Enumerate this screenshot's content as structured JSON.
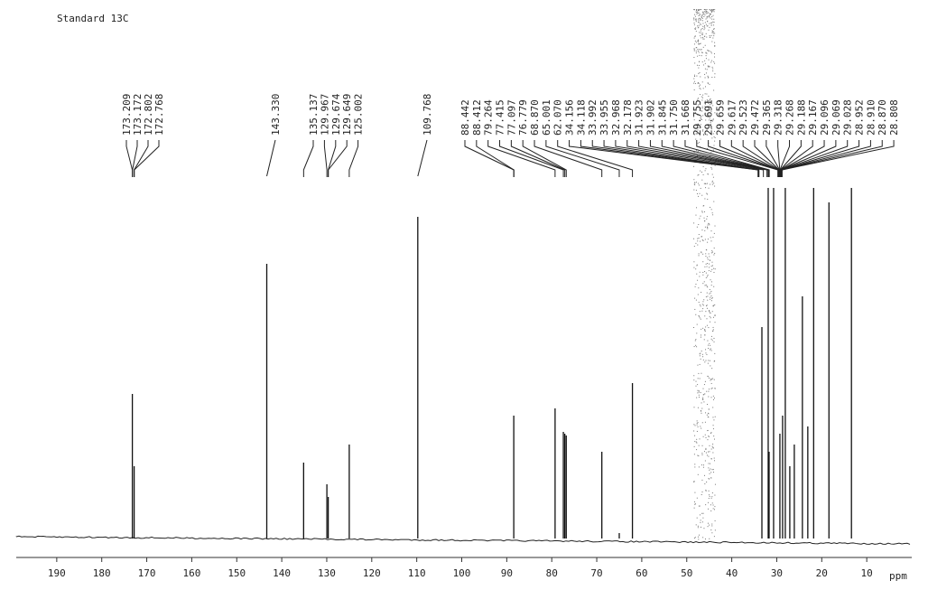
{
  "chart_data": {
    "type": "spectrum",
    "title": "Standard 13C",
    "x_label": "ppm",
    "xlim": [
      199,
      0
    ],
    "ylim": [
      0,
      100
    ],
    "xticks": [
      190,
      180,
      170,
      160,
      150,
      140,
      130,
      120,
      110,
      100,
      90,
      80,
      70,
      60,
      50,
      40,
      30,
      20,
      10
    ],
    "color": "#111111",
    "x": [
      173.2,
      172.8,
      143.33,
      135.14,
      129.97,
      129.67,
      125.0,
      109.77,
      88.44,
      79.26,
      77.42,
      77.1,
      76.78,
      68.87,
      65.0,
      62.07,
      33.3,
      31.9,
      31.7,
      30.7,
      29.3,
      28.7,
      28.1,
      27.1,
      26.1,
      24.3,
      23.1,
      21.8,
      18.4,
      13.4
    ],
    "values": [
      40,
      20,
      76,
      21,
      15,
      11.5,
      26,
      89,
      34,
      36,
      29.5,
      29,
      28.5,
      24,
      1.5,
      43,
      58.5,
      97,
      24,
      97,
      29,
      34,
      97,
      20,
      26,
      67,
      31,
      97,
      93,
      97
    ],
    "peak_labels": [
      [
        "173.209",
        "173.172",
        "172.802",
        "172.768"
      ],
      [
        "143.330"
      ],
      [
        "135.137",
        "129.967",
        "129.674",
        "129.649",
        "125.002"
      ],
      [
        "109.768"
      ],
      [
        "88.442",
        "88.412",
        "79.264",
        "77.415",
        "77.097",
        "76.779",
        "68.870",
        "65.001",
        "62.070",
        "34.156",
        "34.118",
        "33.992",
        "33.955",
        "32.968",
        "32.178",
        "31.923",
        "31.902",
        "31.845",
        "31.750",
        "31.668",
        "29.755",
        "29.691",
        "29.659",
        "29.617",
        "29.523",
        "29.472",
        "29.365",
        "29.318",
        "29.268",
        "29.188",
        "29.167",
        "29.096",
        "29.069",
        "29.028",
        "28.952",
        "28.910",
        "28.870",
        "28.808"
      ]
    ]
  }
}
